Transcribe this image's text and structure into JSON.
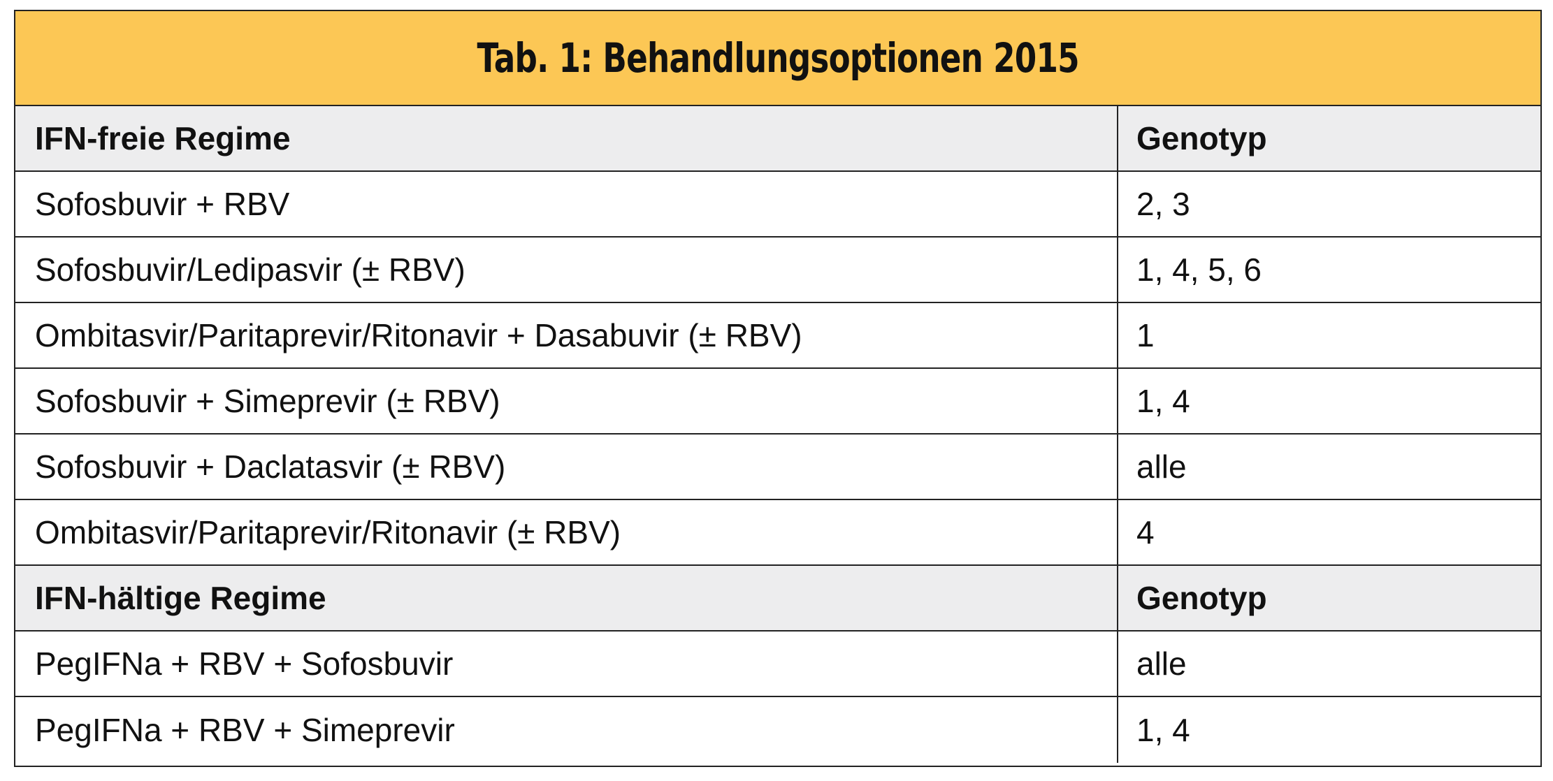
{
  "table": {
    "title": "Tab. 1: Behandlungsoptionen 2015",
    "sections": [
      {
        "header": "IFN-freie Regime",
        "genotype_header": "Genotyp",
        "rows": [
          {
            "regime": "Sofosbuvir + RBV",
            "genotype": "2, 3"
          },
          {
            "regime": "Sofosbuvir/Ledipasvir (± RBV)",
            "genotype": "1, 4, 5, 6"
          },
          {
            "regime": "Ombitasvir/Paritaprevir/Ritonavir + Dasabuvir (± RBV)",
            "genotype": "1"
          },
          {
            "regime": "Sofosbuvir + Simeprevir (± RBV)",
            "genotype": "1, 4"
          },
          {
            "regime": "Sofosbuvir + Daclatasvir (± RBV)",
            "genotype": "alle"
          },
          {
            "regime": "Ombitasvir/Paritaprevir/Ritonavir (± RBV)",
            "genotype": "4"
          }
        ]
      },
      {
        "header": "IFN-hältige Regime",
        "genotype_header": "Genotyp",
        "rows": [
          {
            "regime": "PegIFNa + RBV + Sofosbuvir",
            "genotype": "alle"
          },
          {
            "regime": "PegIFNa + RBV + Simeprevir",
            "genotype": "1, 4"
          }
        ]
      }
    ],
    "colors": {
      "title_background": "#fcc755",
      "section_background": "#ededee",
      "border": "#222222"
    }
  }
}
